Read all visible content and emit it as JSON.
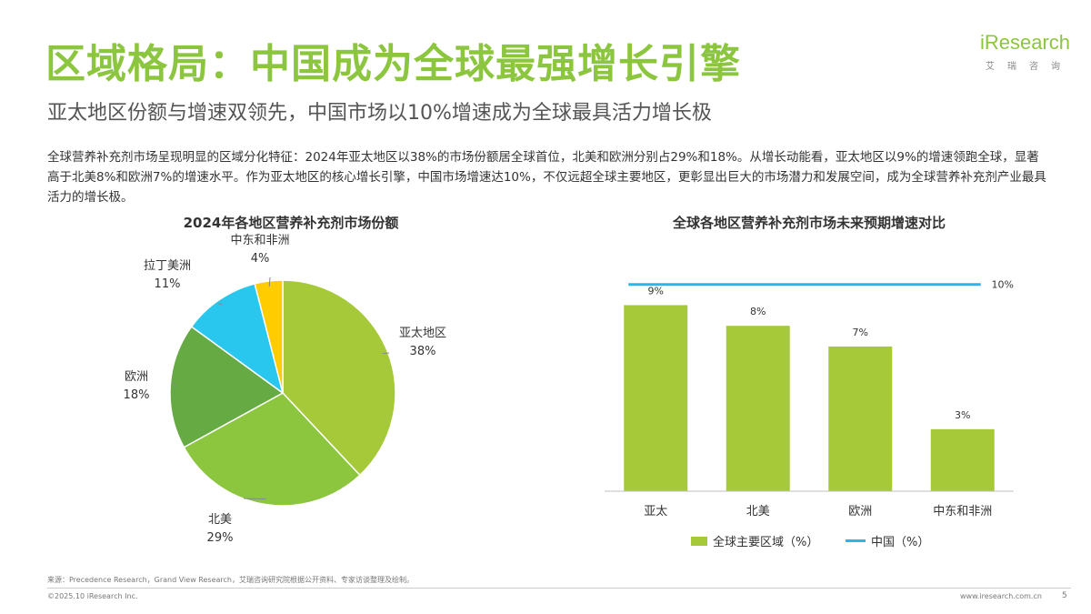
{
  "header": {
    "title": "区域格局：中国成为全球最强增长引擎",
    "subtitle": "亚太地区份额与增速双领先，中国市场以10%增速成为全球最具活力增长极"
  },
  "logo": {
    "brand": "iResearch",
    "brand_cn": "艾瑞咨询"
  },
  "body_text": "全球营养补充剂市场呈现明显的区域分化特征：2024年亚太地区以38%的市场份额居全球首位，北美和欧洲分别占29%和18%。从增长动能看，亚太地区以9%的增速领跑全球，显著高于北美8%和欧洲7%的增速水平。作为亚太地区的核心增长引擎，中国市场增速达10%，不仅远超全球主要地区，更彰显出巨大的市场潜力和发展空间，成为全球营养补充剂产业最具活力的增长极。",
  "chart_data": [
    {
      "type": "pie",
      "title": "2024年各地区营养补充剂市场份额",
      "slices": [
        {
          "label": "亚太地区",
          "value": 38,
          "value_label": "38%",
          "color": "#A6C93A"
        },
        {
          "label": "北美",
          "value": 29,
          "value_label": "29%",
          "color": "#8CC63F"
        },
        {
          "label": "欧洲",
          "value": 18,
          "value_label": "18%",
          "color": "#66AA44"
        },
        {
          "label": "拉丁美洲",
          "value": 11,
          "value_label": "11%",
          "color": "#29C6EE"
        },
        {
          "label": "中东和非洲",
          "value": 4,
          "value_label": "4%",
          "color": "#FFCC00"
        }
      ],
      "start": "top",
      "direction": "clockwise"
    },
    {
      "type": "bar",
      "title": "全球各地区营养补充剂市场未来预期增速对比",
      "categories": [
        "亚太",
        "北美",
        "欧洲",
        "中东和非洲"
      ],
      "series": [
        {
          "name": "全球主要区域（%）",
          "values": [
            9,
            8,
            7,
            3
          ],
          "value_labels": [
            "9%",
            "8%",
            "7%",
            "3%"
          ],
          "color": "#A6C93A"
        }
      ],
      "reference_line": {
        "name": "中国（%）",
        "value": 10,
        "value_label": "10%",
        "color": "#29B6E8"
      },
      "ylim": [
        0,
        11
      ],
      "grid": false,
      "legend_placement": "bottom"
    }
  ],
  "footer": {
    "source": "来源：Precedence Research，Grand View Research，艾瑞咨询研究院根据公开资料、专家访谈整理及绘制。",
    "copyright": "©2025.10 iResearch Inc.",
    "website": "www.iresearch.com.cn",
    "page": "5"
  }
}
